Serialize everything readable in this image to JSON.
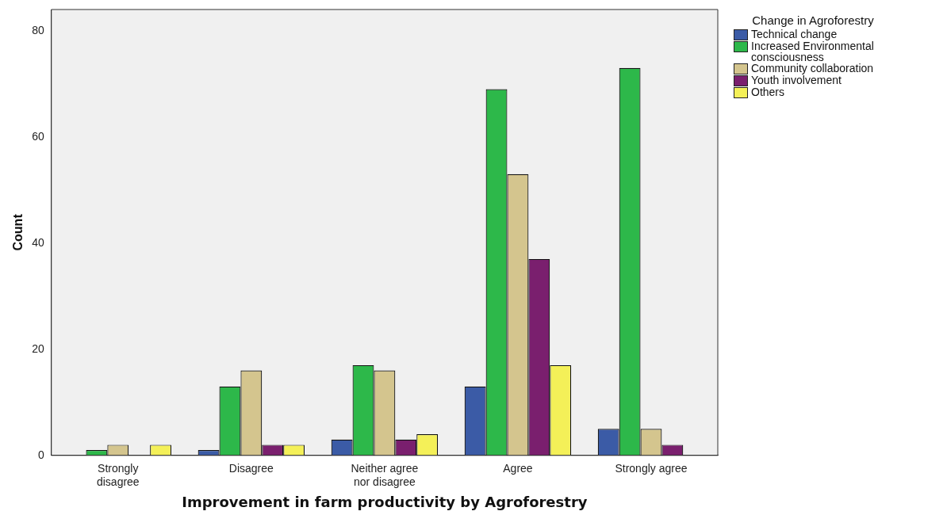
{
  "chart_data": {
    "type": "bar",
    "xlabel": "Improvement in farm productivity by Agroforestry",
    "ylabel": "Count",
    "legend_title": "Change in Agroforestry",
    "legend": "right",
    "grid": false,
    "categories": [
      "Strongly disagree",
      "Disagree",
      "Neither agree nor disagree",
      "Agree",
      "Strongly agree"
    ],
    "ylim": [
      0,
      84
    ],
    "yticks": [
      0,
      20,
      40,
      60,
      80
    ],
    "series": [
      {
        "name": "Technical change",
        "color": "#3b5ba6",
        "values": [
          0,
          1,
          3,
          13,
          5
        ]
      },
      {
        "name": "Increased Environmental consciousness",
        "color": "#2db84a",
        "values": [
          1,
          13,
          17,
          69,
          73
        ]
      },
      {
        "name": "Community collaboration",
        "color": "#d4c58e",
        "values": [
          2,
          16,
          16,
          53,
          5
        ]
      },
      {
        "name": "Youth involvement",
        "color": "#7a1f6e",
        "values": [
          0,
          2,
          3,
          37,
          2
        ]
      },
      {
        "name": "Others",
        "color": "#f4f058",
        "values": [
          2,
          2,
          4,
          17,
          0
        ]
      }
    ]
  }
}
